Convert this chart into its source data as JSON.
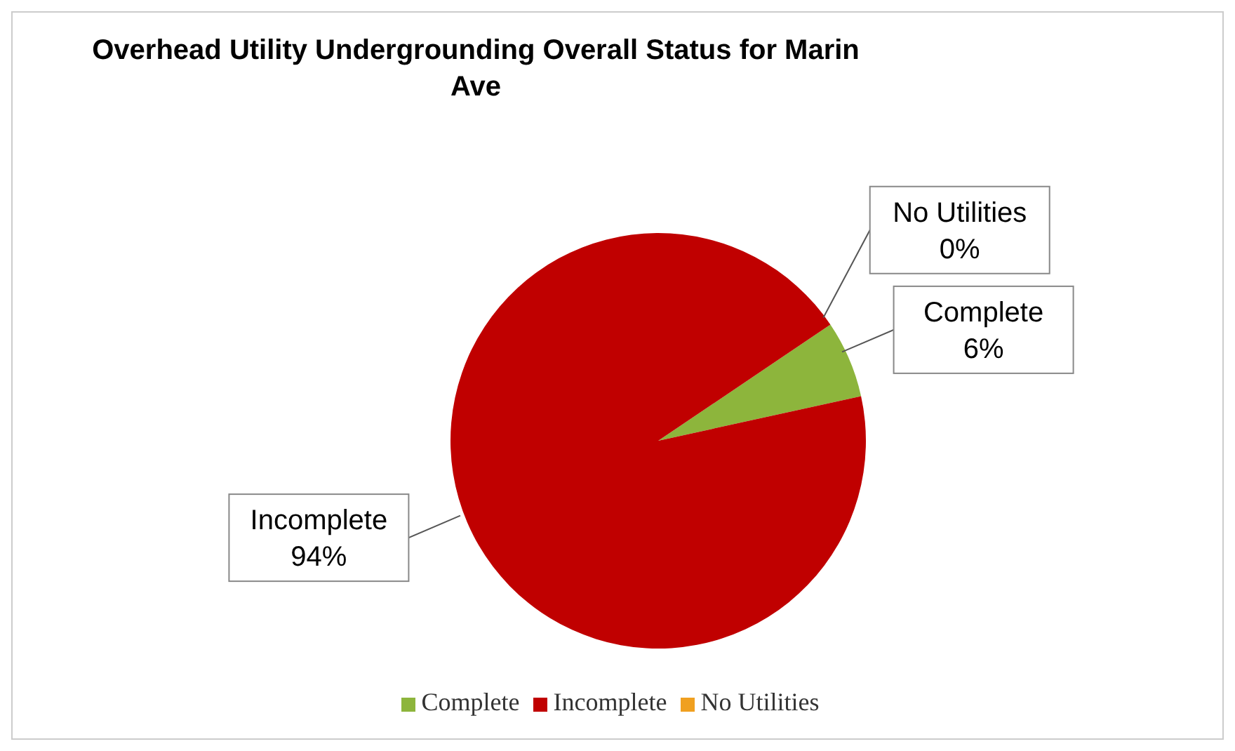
{
  "chart_data": {
    "type": "pie",
    "title": "Overhead Utility Undergrounding Overall Status for Marin Ave",
    "categories": [
      "Complete",
      "Incomplete",
      "No Utilities"
    ],
    "values": [
      6,
      94,
      0
    ],
    "colors": [
      "#8db53c",
      "#c00000",
      "#f0a020"
    ],
    "value_labels": [
      "6%",
      "94%",
      "0%"
    ],
    "legend": "bottom"
  }
}
